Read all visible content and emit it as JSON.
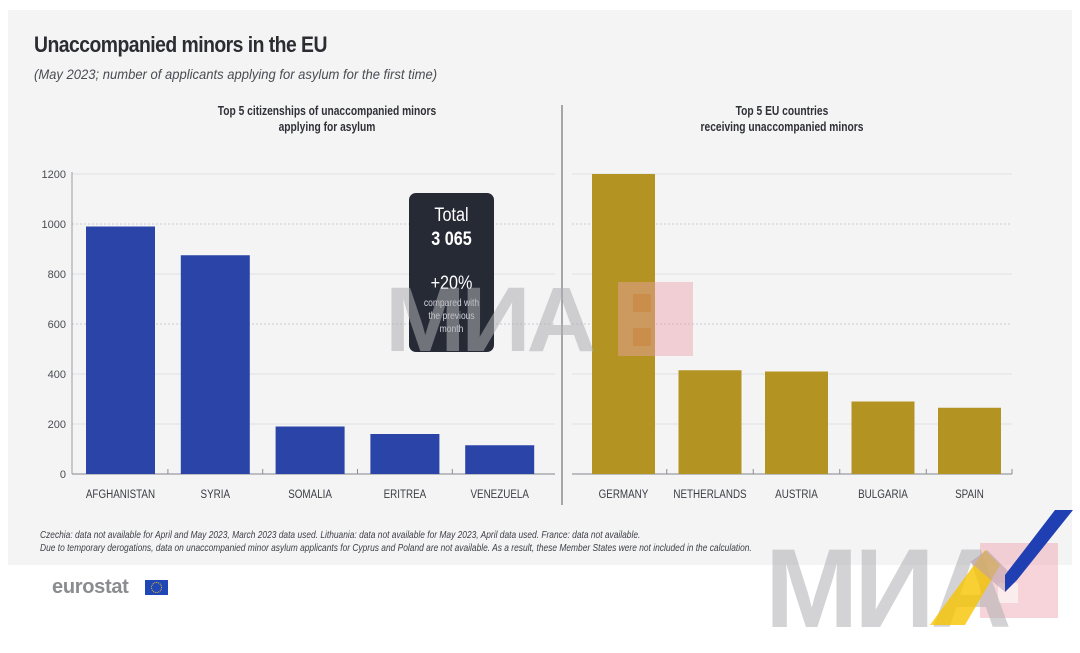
{
  "header": {
    "title": "Unaccompanied minors in the EU",
    "subtitle": "(May 2023; number of applicants applying for asylum for the first time)"
  },
  "colors": {
    "citizenship_bars": "#2a44a8",
    "country_bars": "#b39422",
    "total_box": "#262a35"
  },
  "chart_data": [
    {
      "type": "bar",
      "title": "Top 5 citizenships of unaccompanied minors applying for asylum",
      "title_lines": [
        "Top 5 citizenships of unaccompanied minors",
        "applying for asylum"
      ],
      "categories": [
        "AFGHANISTAN",
        "SYRIA",
        "SOMALIA",
        "ERITREA",
        "VENEZUELA"
      ],
      "values": [
        990,
        875,
        190,
        160,
        115
      ],
      "xlabel": "",
      "ylabel": "",
      "ylim": [
        0,
        1200
      ],
      "yticks": [
        0,
        200,
        400,
        600,
        800,
        1000,
        1200
      ],
      "grid": true,
      "color": "#2a44a8"
    },
    {
      "type": "bar",
      "title": "Top 5 EU countries receiving unaccompanied minors",
      "title_lines": [
        "Top 5 EU countries",
        "receiving unaccompanied minors"
      ],
      "categories": [
        "GERMANY",
        "NETHERLANDS",
        "AUSTRIA",
        "BULGARIA",
        "SPAIN"
      ],
      "values": [
        1200,
        415,
        410,
        290,
        265
      ],
      "xlabel": "",
      "ylabel": "",
      "ylim": [
        0,
        1200
      ],
      "yticks": [
        0,
        200,
        400,
        600,
        800,
        1000,
        1200
      ],
      "grid": true,
      "color": "#b39422"
    }
  ],
  "total_box": {
    "label": "Total",
    "value": "3 065",
    "change": "+20%",
    "note": "compared with the previous month"
  },
  "footnotes": [
    "Czechia: data not available for April and May 2023, March 2023 data used.  Lithuania: data not available for May 2023, April data used. France: data not available.",
    "Due to temporary derogations, data on unaccompanied minor asylum applicants for Cyprus and Poland are not available.  As a result, these Member States were not included in the calculation."
  ],
  "logo": {
    "text": "eurostat",
    "icon": "eu-flag-icon"
  },
  "watermark": {
    "text": "МИА"
  }
}
